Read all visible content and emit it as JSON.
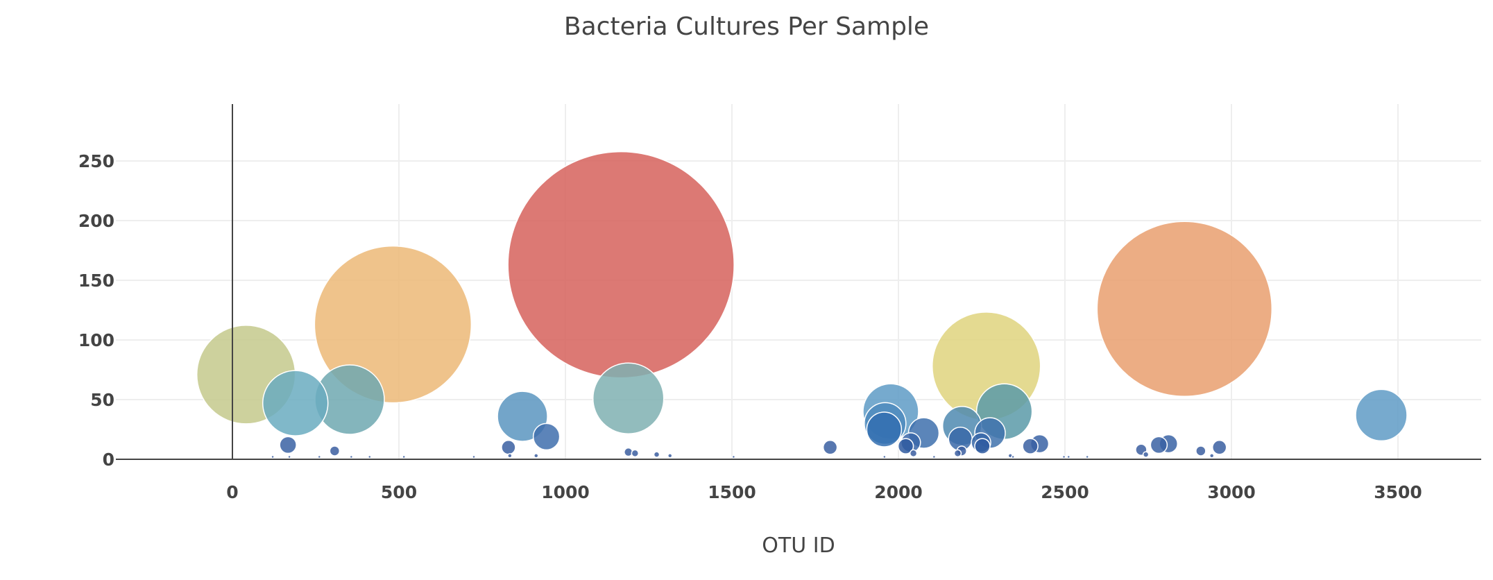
{
  "chart_data": {
    "type": "scatter",
    "title": "Bacteria Cultures Per Sample",
    "xlabel": "OTU ID",
    "ylabel": "",
    "xlim": [
      -350,
      3750
    ],
    "ylim": [
      0,
      300
    ],
    "x_ticks": [
      0,
      500,
      1000,
      1500,
      2000,
      2500,
      3000,
      3500
    ],
    "y_ticks": [
      0,
      50,
      100,
      150,
      200,
      250
    ],
    "grid": true,
    "legend": "none",
    "colorscale": "Earth",
    "points": [
      {
        "x": 1167,
        "y": 163,
        "color": "#d6625c"
      },
      {
        "x": 2859,
        "y": 126,
        "color": "#e99f6f"
      },
      {
        "x": 482,
        "y": 113,
        "color": "#ecb877"
      },
      {
        "x": 2264,
        "y": 78,
        "color": "#dfd47e"
      },
      {
        "x": 41,
        "y": 71,
        "color": "#c4c98c"
      },
      {
        "x": 1189,
        "y": 51,
        "color": "#7fb0b1"
      },
      {
        "x": 352,
        "y": 50,
        "color": "#6fa8b0"
      },
      {
        "x": 189,
        "y": 47,
        "color": "#6aabbf"
      },
      {
        "x": 2318,
        "y": 40,
        "color": "#5b9aa8"
      },
      {
        "x": 1977,
        "y": 40,
        "color": "#5e9bc5"
      },
      {
        "x": 3450,
        "y": 37,
        "color": "#5f9bc6"
      },
      {
        "x": 871,
        "y": 36,
        "color": "#5a95c0"
      },
      {
        "x": 1960,
        "y": 30,
        "color": "#4f8bbd"
      },
      {
        "x": 2191,
        "y": 28,
        "color": "#4f8ab0"
      },
      {
        "x": 1957,
        "y": 25,
        "color": "#336fb0"
      },
      {
        "x": 2076,
        "y": 22,
        "color": "#3e70ad"
      },
      {
        "x": 2275,
        "y": 22,
        "color": "#3f72ad"
      },
      {
        "x": 943,
        "y": 19,
        "color": "#3f6fad"
      },
      {
        "x": 2186,
        "y": 17,
        "color": "#3a68a8"
      },
      {
        "x": 2037,
        "y": 14,
        "color": "#3a66a8"
      },
      {
        "x": 2248,
        "y": 14,
        "color": "#3767a8"
      },
      {
        "x": 2424,
        "y": 13,
        "color": "#3a63a4"
      },
      {
        "x": 2811,
        "y": 13,
        "color": "#3a63a4"
      },
      {
        "x": 167,
        "y": 12,
        "color": "#3961a3"
      },
      {
        "x": 2782,
        "y": 12,
        "color": "#3961a3"
      },
      {
        "x": 2396,
        "y": 11,
        "color": "#3a60a2"
      },
      {
        "x": 2022,
        "y": 11,
        "color": "#2f5aa0"
      },
      {
        "x": 2252,
        "y": 11,
        "color": "#2f5aa0"
      },
      {
        "x": 829,
        "y": 10,
        "color": "#3a5fa1"
      },
      {
        "x": 1795,
        "y": 10,
        "color": "#3a5fa1"
      },
      {
        "x": 2964,
        "y": 10,
        "color": "#3a5fa1"
      },
      {
        "x": 2729,
        "y": 8,
        "color": "#3b5ea0"
      },
      {
        "x": 2190,
        "y": 7,
        "color": "#3b5ea0"
      },
      {
        "x": 307,
        "y": 7,
        "color": "#3b5ea0"
      },
      {
        "x": 2908,
        "y": 7,
        "color": "#3b5ea0"
      },
      {
        "x": 1189,
        "y": 6,
        "color": "#3b5ea0"
      },
      {
        "x": 2045,
        "y": 5,
        "color": "#3b5ea0"
      },
      {
        "x": 2178,
        "y": 5,
        "color": "#3b5ea0"
      },
      {
        "x": 1209,
        "y": 5,
        "color": "#3b5ea0"
      },
      {
        "x": 1274,
        "y": 4,
        "color": "#3b5ea0"
      },
      {
        "x": 2743,
        "y": 4,
        "color": "#3b5ea0"
      },
      {
        "x": 1314,
        "y": 3,
        "color": "#3b5ea0"
      },
      {
        "x": 833,
        "y": 3,
        "color": "#3b5ea0"
      },
      {
        "x": 912,
        "y": 3,
        "color": "#3b5ea0"
      },
      {
        "x": 2941,
        "y": 3,
        "color": "#3b5ea0"
      },
      {
        "x": 2336,
        "y": 3,
        "color": "#3b5ea0"
      },
      {
        "x": 121,
        "y": 2,
        "color": "#3b5ea0"
      },
      {
        "x": 171,
        "y": 2,
        "color": "#3b5ea0"
      },
      {
        "x": 261,
        "y": 2,
        "color": "#3b5ea0"
      },
      {
        "x": 357,
        "y": 2,
        "color": "#3b5ea0"
      },
      {
        "x": 412,
        "y": 2,
        "color": "#3b5ea0"
      },
      {
        "x": 515,
        "y": 2,
        "color": "#3b5ea0"
      },
      {
        "x": 725,
        "y": 2,
        "color": "#3b5ea0"
      },
      {
        "x": 1505,
        "y": 2,
        "color": "#3b5ea0"
      },
      {
        "x": 1958,
        "y": 2,
        "color": "#3b5ea0"
      },
      {
        "x": 2107,
        "y": 2,
        "color": "#3b5ea0"
      },
      {
        "x": 2344,
        "y": 2,
        "color": "#3b5ea0"
      },
      {
        "x": 2497,
        "y": 2,
        "color": "#3b5ea0"
      },
      {
        "x": 2511,
        "y": 2,
        "color": "#3b5ea0"
      },
      {
        "x": 2567,
        "y": 2,
        "color": "#3b5ea0"
      }
    ]
  }
}
